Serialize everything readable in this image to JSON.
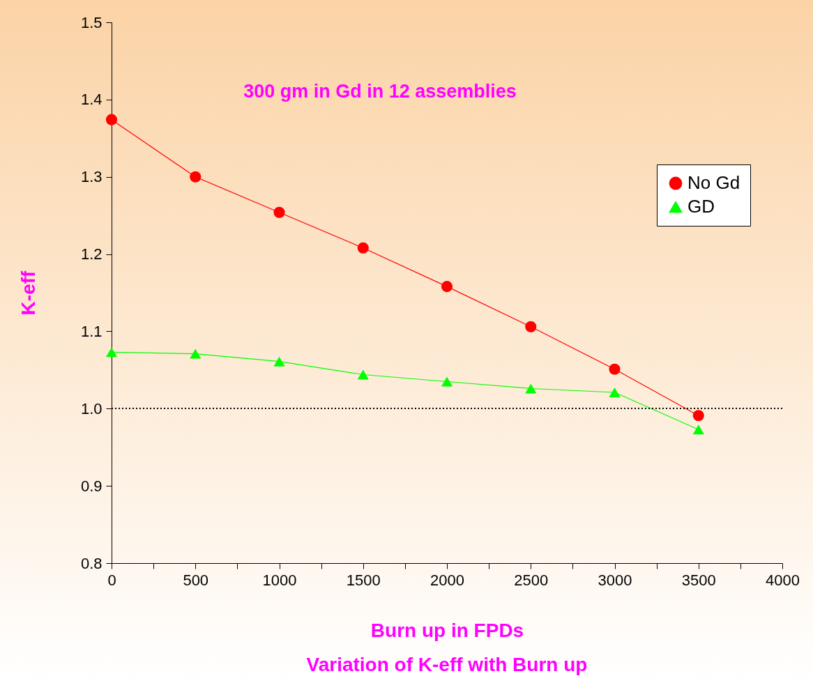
{
  "chart_data": {
    "type": "line",
    "title": "Variation of K-eff with Burn up",
    "xlabel": "Burn up in FPDs",
    "ylabel": "K-eff",
    "annotations": [
      "300 gm in Gd in 12 assemblies"
    ],
    "x": [
      0,
      500,
      1000,
      1500,
      2000,
      2500,
      3000,
      3500
    ],
    "series": [
      {
        "name": "No Gd",
        "color": "#ff0000",
        "marker": "circle",
        "values": [
          1.374,
          1.3,
          1.254,
          1.208,
          1.158,
          1.106,
          1.051,
          0.991
        ]
      },
      {
        "name": "GD",
        "color": "#00ff00",
        "marker": "triangle",
        "values": [
          1.073,
          1.071,
          1.061,
          1.044,
          1.035,
          1.026,
          1.021,
          0.973
        ]
      }
    ],
    "xlim": [
      0,
      4000
    ],
    "xticks": [
      0,
      {
        "value": 250,
        "label": null
      },
      500,
      {
        "value": 750,
        "label": null
      },
      1000,
      {
        "value": 1250,
        "label": null
      },
      1500,
      {
        "value": 1750,
        "label": null
      },
      2000,
      {
        "value": 2250,
        "label": null
      },
      2500,
      {
        "value": 2750,
        "label": null
      },
      3000,
      {
        "value": 3250,
        "label": null
      },
      3500,
      {
        "value": 3750,
        "label": null
      },
      4000
    ],
    "ylim": [
      0.8,
      1.5
    ],
    "yticks": [
      0.8,
      0.9,
      {
        "value": 1,
        "label": "1.0"
      },
      1.1,
      1.2,
      1.3,
      1.4,
      1.5
    ],
    "ref_lines": [
      {
        "axis": "y",
        "value": 1,
        "color": "#000000",
        "line_style": "dotted"
      }
    ],
    "legend": "right",
    "grid": false
  }
}
